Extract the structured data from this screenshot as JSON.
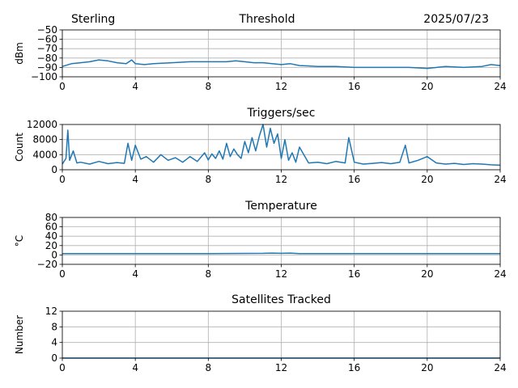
{
  "header": {
    "left": "Sterling",
    "center": "Threshold",
    "right": "2025/07/23"
  },
  "colors": {
    "line": "#1f77b4",
    "grid": "#b0b0b0"
  },
  "chart_data": [
    {
      "type": "line",
      "title": "",
      "ylabel": "dBm",
      "xlim": [
        0,
        24
      ],
      "ylim": [
        -100,
        -50
      ],
      "xticks": [
        0,
        4,
        8,
        12,
        16,
        20,
        24
      ],
      "yticks": [
        -100,
        -90,
        -80,
        -70,
        -60,
        -50
      ],
      "ytick_labels": [
        "−100",
        "−90",
        "−80",
        "−70",
        "−60",
        "−50"
      ],
      "grid": true,
      "x": [
        0,
        0.5,
        1,
        1.5,
        2,
        2.5,
        3,
        3.5,
        3.8,
        4,
        4.5,
        5,
        6,
        7,
        8,
        9,
        9.5,
        10,
        10.5,
        11,
        11.5,
        12,
        12.5,
        13,
        14,
        15,
        16,
        17,
        18,
        19,
        20,
        21,
        22,
        23,
        23.5,
        24
      ],
      "y": [
        -89,
        -86,
        -85,
        -84,
        -82,
        -83,
        -85,
        -86,
        -82,
        -86,
        -87,
        -86,
        -85,
        -84,
        -84,
        -84,
        -83,
        -84,
        -85,
        -85,
        -86,
        -87,
        -86,
        -88,
        -89,
        -89,
        -90,
        -90,
        -90,
        -90,
        -91,
        -89,
        -90,
        -89,
        -87,
        -88
      ]
    },
    {
      "type": "line",
      "title": "Triggers/sec",
      "ylabel": "Count",
      "xlim": [
        0,
        24
      ],
      "ylim": [
        0,
        12000
      ],
      "xticks": [
        0,
        4,
        8,
        12,
        16,
        20,
        24
      ],
      "yticks": [
        0,
        4000,
        8000,
        12000
      ],
      "ytick_labels": [
        "0",
        "4000",
        "8000",
        "12000"
      ],
      "grid": true,
      "x": [
        0,
        0.2,
        0.3,
        0.4,
        0.6,
        0.8,
        1,
        1.5,
        2,
        2.5,
        3,
        3.4,
        3.6,
        3.8,
        4,
        4.3,
        4.6,
        5,
        5.4,
        5.8,
        6.2,
        6.6,
        7,
        7.4,
        7.8,
        8,
        8.2,
        8.4,
        8.6,
        8.8,
        9,
        9.2,
        9.4,
        9.6,
        9.8,
        10,
        10.2,
        10.4,
        10.6,
        10.8,
        11,
        11.2,
        11.4,
        11.6,
        11.8,
        12,
        12.2,
        12.4,
        12.6,
        12.8,
        13,
        13.5,
        14,
        14.5,
        15,
        15.5,
        15.7,
        16,
        16.5,
        17,
        17.5,
        18,
        18.5,
        18.8,
        19,
        19.5,
        20,
        20.5,
        21,
        21.5,
        22,
        22.5,
        23,
        23.5,
        24
      ],
      "y": [
        1500,
        3000,
        10500,
        2500,
        5000,
        1800,
        2000,
        1500,
        2200,
        1600,
        1900,
        1700,
        7000,
        2500,
        6500,
        2800,
        3500,
        2000,
        4000,
        2500,
        3200,
        2000,
        3500,
        2200,
        4500,
        2600,
        4200,
        3000,
        5000,
        2800,
        7000,
        3500,
        5500,
        4000,
        3000,
        7500,
        4500,
        8500,
        5000,
        9000,
        12000,
        6000,
        11000,
        7000,
        9500,
        3000,
        8000,
        2500,
        4500,
        2000,
        6000,
        1800,
        2000,
        1600,
        2200,
        1800,
        8500,
        2000,
        1500,
        1700,
        1900,
        1600,
        2000,
        6500,
        1800,
        2500,
        3500,
        1800,
        1500,
        1700,
        1400,
        1600,
        1500,
        1300,
        1200
      ]
    },
    {
      "type": "line",
      "title": "Temperature",
      "ylabel": "°C",
      "xlim": [
        0,
        24
      ],
      "ylim": [
        -20,
        80
      ],
      "xticks": [
        0,
        4,
        8,
        12,
        16,
        20,
        24
      ],
      "yticks": [
        -20,
        0,
        20,
        40,
        60,
        80
      ],
      "ytick_labels": [
        "−20",
        "0",
        "20",
        "40",
        "60",
        "80"
      ],
      "grid": true,
      "x": [
        0,
        4,
        8,
        11,
        11.5,
        12,
        12.5,
        13,
        16,
        20,
        24
      ],
      "y": [
        3,
        3,
        3,
        3.5,
        4,
        3.5,
        4,
        3,
        3,
        3,
        3
      ]
    },
    {
      "type": "line",
      "title": "Satellites Tracked",
      "ylabel": "Number",
      "xlim": [
        0,
        24
      ],
      "ylim": [
        0,
        12
      ],
      "xticks": [
        0,
        4,
        8,
        12,
        16,
        20,
        24
      ],
      "yticks": [
        0,
        4,
        8,
        12
      ],
      "ytick_labels": [
        "0",
        "4",
        "8",
        "12"
      ],
      "grid": true,
      "x": [
        0,
        24
      ],
      "y": [
        0,
        0
      ]
    }
  ]
}
